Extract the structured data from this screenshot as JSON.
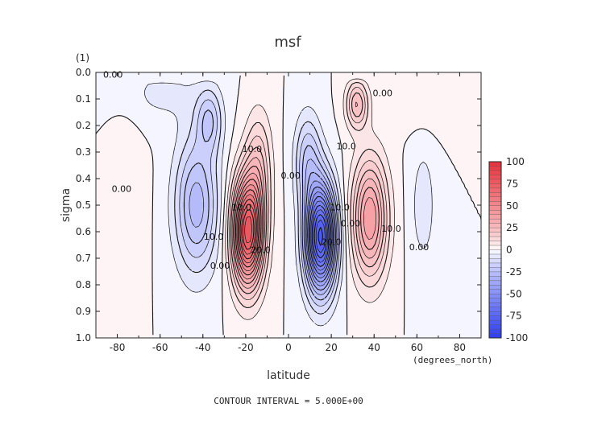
{
  "chart_data": {
    "type": "heatmap",
    "title": "msf",
    "xlabel": "latitude",
    "ylabel": "sigma",
    "units": "(1)",
    "x_units_label": "(degrees_north)",
    "footer": "CONTOUR INTERVAL = 5.000E+00",
    "xlim": [
      -90,
      90
    ],
    "ylim": [
      1.0,
      0.0
    ],
    "x_ticks": [
      -80,
      -60,
      -40,
      -20,
      0,
      20,
      40,
      60,
      80
    ],
    "x_tick_labels": [
      "-80",
      "-60",
      "-40",
      "-20",
      "0",
      "20",
      "40",
      "60",
      "80"
    ],
    "y_ticks": [
      0.0,
      0.1,
      0.2,
      0.3,
      0.4,
      0.5,
      0.6,
      0.7,
      0.8,
      0.9,
      1.0
    ],
    "y_tick_labels": [
      "0.0",
      "0.1",
      "0.2",
      "0.3",
      "0.4",
      "0.5",
      "0.6",
      "0.7",
      "0.8",
      "0.9",
      "1.0"
    ],
    "colorbar": {
      "ticks": [
        100,
        75,
        50,
        25,
        0,
        -25,
        -50,
        -75,
        -100
      ],
      "tick_labels": [
        "100",
        "75",
        "50",
        "25",
        "0",
        "-25",
        "-50",
        "-75",
        "-100"
      ],
      "range": [
        -100,
        100
      ],
      "max_color": "#e8323c",
      "zero_color": "#ffffff",
      "min_color": "#2f3ff0"
    },
    "contour_interval": 5,
    "contour_labels": [
      {
        "text": "0.00",
        "lat": -78,
        "sigma": 0.45
      },
      {
        "text": "0.00",
        "lat": -82,
        "sigma": 0.02
      },
      {
        "text": "10.0",
        "lat": -35,
        "sigma": 0.63
      },
      {
        "text": "0.00",
        "lat": -32,
        "sigma": 0.74
      },
      {
        "text": "10.0",
        "lat": -17,
        "sigma": 0.3
      },
      {
        "text": "10.0",
        "lat": -22,
        "sigma": 0.52
      },
      {
        "text": "20.0",
        "lat": -13,
        "sigma": 0.68
      },
      {
        "text": "0.00",
        "lat": 1,
        "sigma": 0.4
      },
      {
        "text": "10.0",
        "lat": 24,
        "sigma": 0.52
      },
      {
        "text": "0.00",
        "lat": 29,
        "sigma": 0.58
      },
      {
        "text": "20.0",
        "lat": 20,
        "sigma": 0.65
      },
      {
        "text": "10.0",
        "lat": 27,
        "sigma": 0.29
      },
      {
        "text": "0.00",
        "lat": 44,
        "sigma": 0.09
      },
      {
        "text": "10.0",
        "lat": 48,
        "sigma": 0.6
      },
      {
        "text": "0.00",
        "lat": 61,
        "sigma": 0.67
      }
    ],
    "cells": [
      {
        "lat": -19,
        "sigma": 0.6,
        "amp": 78,
        "wlat": 7,
        "wsig": 0.2
      },
      {
        "lat": -14,
        "sigma": 0.35,
        "amp": 18,
        "wlat": 6,
        "wsig": 0.2
      },
      {
        "lat": 15,
        "sigma": 0.62,
        "amp": -82,
        "wlat": 7,
        "wsig": 0.2
      },
      {
        "lat": 9,
        "sigma": 0.33,
        "amp": -20,
        "wlat": 6,
        "wsig": 0.17
      },
      {
        "lat": -43,
        "sigma": 0.5,
        "amp": -28,
        "wlat": 10,
        "wsig": 0.25
      },
      {
        "lat": -37,
        "sigma": 0.18,
        "amp": -18,
        "wlat": 6,
        "wsig": 0.12
      },
      {
        "lat": 38,
        "sigma": 0.55,
        "amp": 40,
        "wlat": 8,
        "wsig": 0.22
      },
      {
        "lat": 32,
        "sigma": 0.12,
        "amp": 25,
        "wlat": 5,
        "wsig": 0.09
      },
      {
        "lat": -76,
        "sigma": 0.45,
        "amp": 5,
        "wlat": 8,
        "wsig": 0.28
      },
      {
        "lat": 63,
        "sigma": 0.5,
        "amp": -8,
        "wlat": 6,
        "wsig": 0.24
      },
      {
        "lat": -60,
        "sigma": 0.08,
        "amp": -6,
        "wlat": 20,
        "wsig": 0.12
      },
      {
        "lat": 70,
        "sigma": 0.12,
        "amp": 5,
        "wlat": 20,
        "wsig": 0.1
      }
    ],
    "grid": false,
    "legend": "colorbar-right"
  }
}
